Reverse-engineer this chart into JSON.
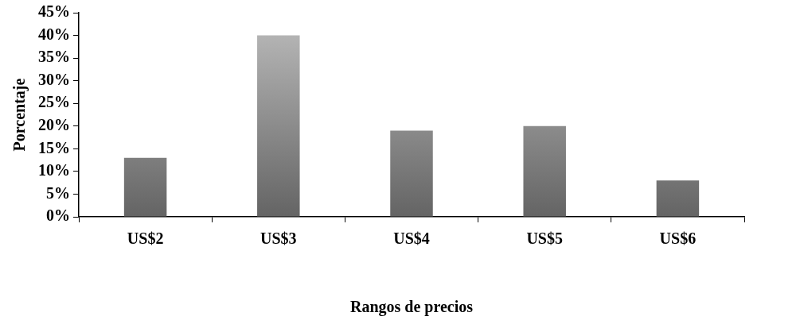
{
  "chart_data": {
    "type": "bar",
    "xlabel": "Rangos de precios",
    "ylabel": "Porcentaje",
    "categories": [
      "US$2",
      "US$3",
      "US$4",
      "US$5",
      "US$6"
    ],
    "values": [
      13,
      40,
      19,
      20,
      8
    ],
    "color": "#9a9a9a",
    "ylim": [
      0,
      45
    ],
    "yticks": [
      {
        "value": 0,
        "label": "0%"
      },
      {
        "value": 5,
        "label": "5%"
      },
      {
        "value": 10,
        "label": "10%"
      },
      {
        "value": 15,
        "label": "15%"
      },
      {
        "value": 20,
        "label": "20%"
      },
      {
        "value": 25,
        "label": "25%"
      },
      {
        "value": 30,
        "label": "30%"
      },
      {
        "value": 35,
        "label": "35%"
      },
      {
        "value": 40,
        "label": "40%"
      },
      {
        "value": 45,
        "label": "45%"
      }
    ],
    "grid": false,
    "legend": false
  }
}
